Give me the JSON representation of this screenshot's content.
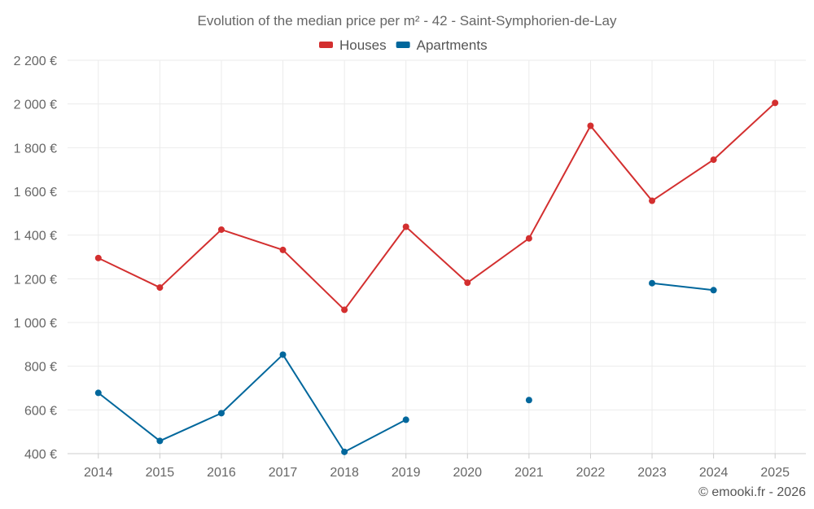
{
  "chart_data": {
    "type": "line",
    "title": "Evolution of the median price per m² - 42 - Saint-Symphorien-de-Lay",
    "xlabel": "",
    "ylabel": "",
    "categories": [
      "2014",
      "2015",
      "2016",
      "2017",
      "2018",
      "2019",
      "2020",
      "2021",
      "2022",
      "2023",
      "2024",
      "2025"
    ],
    "ylim": [
      400,
      2200
    ],
    "yticks": [
      400,
      600,
      800,
      1000,
      1200,
      1400,
      1600,
      1800,
      2000,
      2200
    ],
    "ytick_labels": [
      "400 €",
      "600 €",
      "800 €",
      "1 000 €",
      "1 200 €",
      "1 400 €",
      "1 600 €",
      "1 800 €",
      "2 000 €",
      "2 200 €"
    ],
    "grid": true,
    "legend_position": "top-center",
    "series": [
      {
        "name": "Houses",
        "color": "#d32f2f",
        "values": [
          1295,
          1160,
          1425,
          1332,
          1058,
          1438,
          1182,
          1385,
          1900,
          1557,
          1745,
          2005
        ]
      },
      {
        "name": "Apartments",
        "color": "#01679c",
        "values": [
          678,
          458,
          585,
          853,
          408,
          555,
          null,
          645,
          null,
          1180,
          1148,
          null
        ]
      }
    ]
  },
  "credit": "© emooki.fr - 2026"
}
